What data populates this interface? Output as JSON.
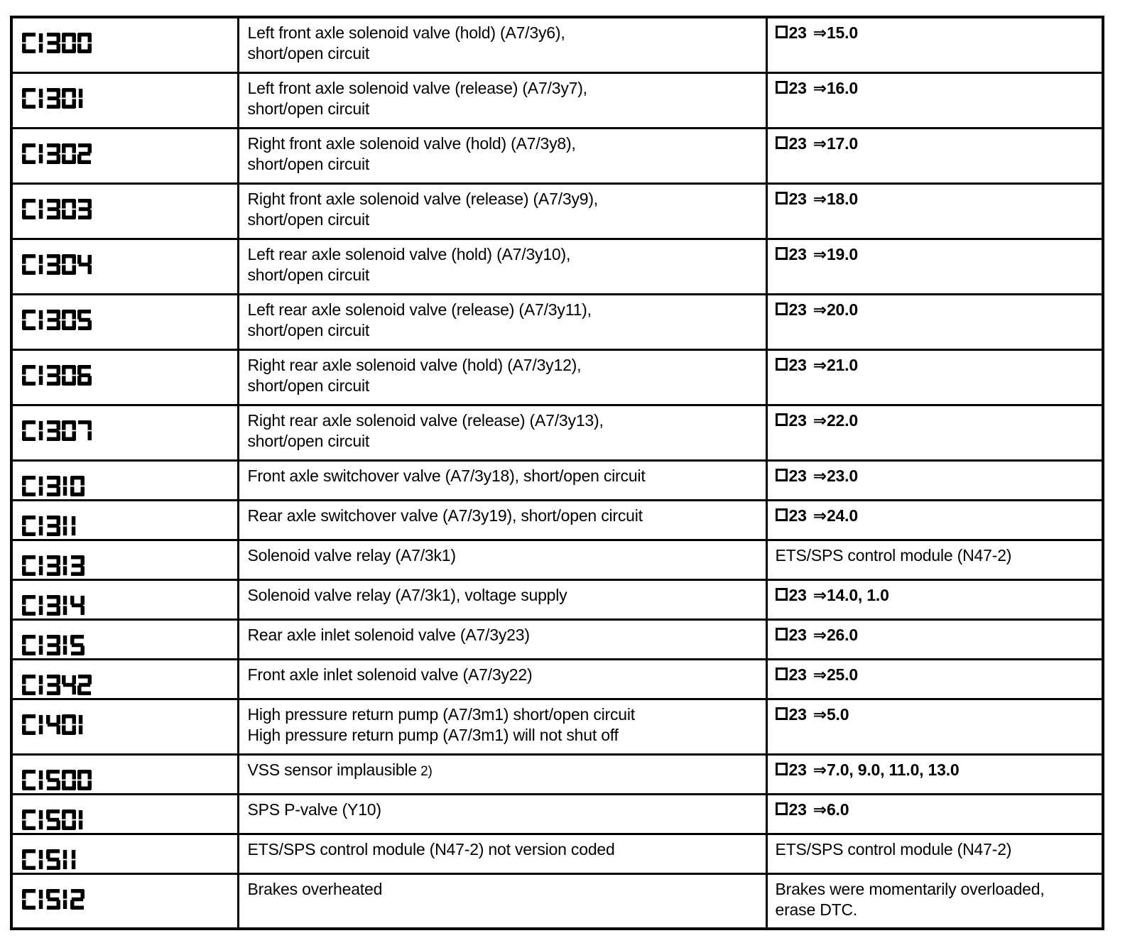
{
  "page": {
    "background": "#ffffff",
    "text_color": "#000000"
  },
  "icons": {
    "square": "white-square-icon",
    "arrow_glyph": "⇒",
    "arrow": "double-arrow-right-icon"
  },
  "table": {
    "rows": [
      {
        "code": "C1300",
        "description_lines": [
          "Left front axle solenoid valve (hold) (A7/3y6),",
          "short/open circuit"
        ],
        "footnote": "",
        "test": {
          "kind": "step",
          "box_label": "23",
          "arrow": "⇒",
          "steps": "15.0"
        }
      },
      {
        "code": "C1301",
        "description_lines": [
          "Left front axle solenoid valve (release) (A7/3y7),",
          "short/open circuit"
        ],
        "footnote": "",
        "test": {
          "kind": "step",
          "box_label": "23",
          "arrow": "⇒",
          "steps": "16.0"
        }
      },
      {
        "code": "C1302",
        "description_lines": [
          "Right front axle solenoid valve (hold) (A7/3y8),",
          "short/open circuit"
        ],
        "footnote": "",
        "test": {
          "kind": "step",
          "box_label": "23",
          "arrow": "⇒",
          "steps": "17.0"
        }
      },
      {
        "code": "C1303",
        "description_lines": [
          "Right front axle solenoid valve (release) (A7/3y9),",
          "short/open circuit"
        ],
        "footnote": "",
        "test": {
          "kind": "step",
          "box_label": "23",
          "arrow": "⇒",
          "steps": "18.0"
        }
      },
      {
        "code": "C1304",
        "description_lines": [
          "Left rear axle solenoid valve (hold) (A7/3y10),",
          "short/open circuit"
        ],
        "footnote": "",
        "test": {
          "kind": "step",
          "box_label": "23",
          "arrow": "⇒",
          "steps": "19.0"
        }
      },
      {
        "code": "C1305",
        "description_lines": [
          "Left rear axle solenoid valve (release) (A7/3y11),",
          "short/open circuit"
        ],
        "footnote": "",
        "test": {
          "kind": "step",
          "box_label": "23",
          "arrow": "⇒",
          "steps": "20.0"
        }
      },
      {
        "code": "C1306",
        "description_lines": [
          "Right rear axle solenoid valve (hold) (A7/3y12),",
          "short/open circuit"
        ],
        "footnote": "",
        "test": {
          "kind": "step",
          "box_label": "23",
          "arrow": "⇒",
          "steps": "21.0"
        }
      },
      {
        "code": "C1307",
        "description_lines": [
          "Right rear axle solenoid valve (release) (A7/3y13),",
          "short/open circuit"
        ],
        "footnote": "",
        "test": {
          "kind": "step",
          "box_label": "23",
          "arrow": "⇒",
          "steps": "22.0"
        }
      },
      {
        "code": "C1310",
        "description_lines": [
          "Front axle switchover valve (A7/3y18), short/open circuit"
        ],
        "footnote": "",
        "test": {
          "kind": "step",
          "box_label": "23",
          "arrow": "⇒",
          "steps": "23.0"
        }
      },
      {
        "code": "C1311",
        "description_lines": [
          "Rear axle switchover valve (A7/3y19), short/open circuit"
        ],
        "footnote": "",
        "test": {
          "kind": "step",
          "box_label": "23",
          "arrow": "⇒",
          "steps": "24.0"
        }
      },
      {
        "code": "C1313",
        "description_lines": [
          "Solenoid valve relay (A7/3k1)"
        ],
        "footnote": "",
        "test": {
          "kind": "text",
          "lines": [
            "ETS/SPS control module (N47-2)"
          ]
        }
      },
      {
        "code": "C1314",
        "description_lines": [
          "Solenoid valve relay (A7/3k1), voltage supply"
        ],
        "footnote": "",
        "test": {
          "kind": "step",
          "box_label": "23",
          "arrow": "⇒",
          "steps": "14.0, 1.0"
        }
      },
      {
        "code": "C1315",
        "description_lines": [
          "Rear axle inlet solenoid valve (A7/3y23)"
        ],
        "footnote": "",
        "test": {
          "kind": "step",
          "box_label": "23",
          "arrow": "⇒",
          "steps": "26.0"
        }
      },
      {
        "code": "C1342",
        "description_lines": [
          "Front axle inlet solenoid valve (A7/3y22)"
        ],
        "footnote": "",
        "test": {
          "kind": "step",
          "box_label": "23",
          "arrow": "⇒",
          "steps": "25.0"
        }
      },
      {
        "code": "C1401",
        "description_lines": [
          "High pressure return pump (A7/3m1) short/open circuit",
          "High pressure return pump (A7/3m1) will not shut off"
        ],
        "footnote": "",
        "test": {
          "kind": "step",
          "box_label": "23",
          "arrow": "⇒",
          "steps": "5.0"
        }
      },
      {
        "code": "C1500",
        "description_lines": [
          "VSS sensor implausible"
        ],
        "footnote": "2)",
        "test": {
          "kind": "step",
          "box_label": "23",
          "arrow": "⇒",
          "steps": "7.0, 9.0, 11.0, 13.0"
        }
      },
      {
        "code": "C1501",
        "description_lines": [
          "SPS P-valve (Y10)"
        ],
        "footnote": "",
        "test": {
          "kind": "step",
          "box_label": "23",
          "arrow": "⇒",
          "steps": "6.0"
        }
      },
      {
        "code": "C1511",
        "description_lines": [
          "ETS/SPS control module (N47-2) not version coded"
        ],
        "footnote": "",
        "test": {
          "kind": "text",
          "lines": [
            "ETS/SPS control module (N47-2)"
          ]
        }
      },
      {
        "code": "C1512",
        "description_lines": [
          "Brakes overheated"
        ],
        "footnote": "",
        "test": {
          "kind": "text",
          "lines": [
            "Brakes were momentarily overloaded,",
            "erase DTC."
          ]
        }
      }
    ]
  }
}
